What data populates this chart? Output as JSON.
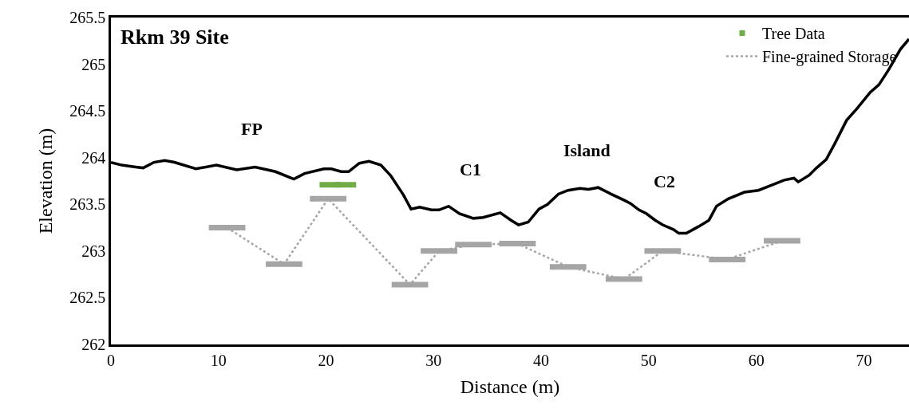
{
  "chart_data": {
    "type": "line",
    "xlabel": "Distance (m)",
    "ylabel": "Elevation (m)",
    "xlim": [
      0,
      74.2
    ],
    "xticks": [
      0,
      10,
      20,
      30,
      40,
      50,
      60,
      70
    ],
    "ylim": [
      262,
      265.5
    ],
    "yticks": [
      262,
      262.5,
      263,
      263.5,
      264,
      264.5,
      265,
      265.5
    ],
    "legend": "top right",
    "annotations": [
      "Rkm 39 Site",
      "FP",
      "C1",
      "Island",
      "C2"
    ],
    "series": [
      {
        "color": "#000000",
        "line_style": "solid",
        "marker": "none",
        "x": [
          0,
          1.0,
          2.3,
          3.0,
          4.0,
          5.0,
          5.9,
          7.9,
          9.8,
          11.7,
          13.4,
          15.3,
          17.0,
          18.0,
          19.8,
          20.5,
          21.4,
          22.1,
          23.1,
          24.0,
          25.1,
          26.0,
          27.2,
          27.9,
          28.7,
          29.8,
          30.5,
          31.4,
          32.4,
          33.7,
          34.6,
          36.2,
          37.2,
          37.9,
          38.8,
          39.8,
          40.6,
          41.6,
          42.5,
          43.6,
          44.4,
          45.3,
          46.5,
          47.8,
          48.3,
          49.1,
          49.8,
          50.6,
          51.3,
          52.3,
          52.8,
          53.5,
          54.6,
          55.6,
          56.3,
          57.4,
          58.9,
          60.2,
          61.3,
          62.6,
          63.5,
          63.9,
          64.9,
          65.6,
          66.5,
          67.3,
          68.4,
          69.4,
          70.6,
          71.4,
          72.3,
          73.4,
          74.2
        ],
        "values": [
          263.95,
          263.92,
          263.9,
          263.89,
          263.95,
          263.97,
          263.95,
          263.88,
          263.92,
          263.87,
          263.9,
          263.85,
          263.77,
          263.83,
          263.88,
          263.88,
          263.85,
          263.85,
          263.94,
          263.96,
          263.92,
          263.81,
          263.6,
          263.45,
          263.47,
          263.44,
          263.44,
          263.48,
          263.4,
          263.35,
          263.36,
          263.41,
          263.33,
          263.28,
          263.31,
          263.45,
          263.5,
          263.61,
          263.65,
          263.67,
          263.66,
          263.68,
          263.61,
          263.54,
          263.51,
          263.44,
          263.4,
          263.33,
          263.28,
          263.23,
          263.19,
          263.19,
          263.26,
          263.33,
          263.48,
          263.56,
          263.63,
          263.65,
          263.7,
          263.76,
          263.78,
          263.74,
          263.81,
          263.89,
          263.98,
          264.15,
          264.4,
          264.53,
          264.7,
          264.78,
          264.94,
          265.16,
          265.27
        ]
      },
      {
        "name": "Tree Data",
        "color": "#70ad47",
        "line_style": "none",
        "marker": "square",
        "x": [
          21.1
        ],
        "values": [
          263.71
        ],
        "xerrors": [
          1.7
        ]
      },
      {
        "name": "Fine-grained Storage",
        "color": "#a5a5a5",
        "line_style": "dotted",
        "marker": "none",
        "xerrors": [
          1.7,
          1.7,
          1.7,
          1.7,
          1.7,
          1.7,
          1.7,
          1.7,
          1.7,
          1.7,
          1.7,
          1.7
        ],
        "x": [
          10.8,
          16.1,
          20.2,
          27.8,
          30.5,
          33.7,
          37.8,
          42.5,
          47.7,
          51.3,
          57.3,
          62.4
        ],
        "values": [
          263.25,
          262.86,
          263.56,
          262.64,
          263.0,
          263.07,
          263.08,
          262.83,
          262.7,
          263.0,
          262.91,
          263.11
        ]
      }
    ]
  }
}
